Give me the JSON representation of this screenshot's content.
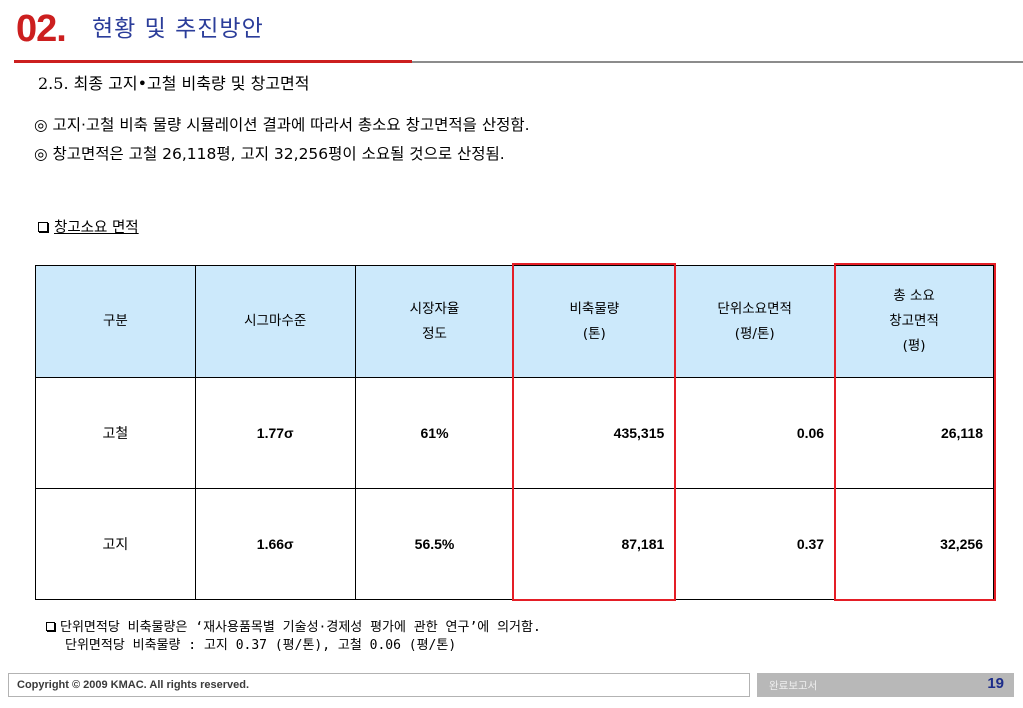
{
  "header": {
    "number": "02.",
    "title": "현황 및 추진방안"
  },
  "subtitle": "2.5. 최종 고지•고철 비축량 및 창고면적",
  "bullets": [
    "◎ 고지·고철 비축 물량 시뮬레이션 결과에 따라서 총소요 창고면적을 산정함.",
    "◎ 창고면적은 고철 26,118평, 고지 32,256평이 소요될 것으로 산정됨."
  ],
  "section_label": "창고소요 면적",
  "table": {
    "headers": [
      [
        "구분"
      ],
      [
        "시그마수준"
      ],
      [
        "시장자율",
        "정도"
      ],
      [
        "비축물량",
        "(톤)"
      ],
      [
        "단위소요면적",
        "(평/톤)"
      ],
      [
        "총 소요",
        "창고면적",
        "(평)"
      ]
    ],
    "rows": [
      [
        "고철",
        "1.77σ",
        "61%",
        "435,315",
        "0.06",
        "26,118"
      ],
      [
        "고지",
        "1.66σ",
        "56.5%",
        "87,181",
        "0.37",
        "32,256"
      ]
    ],
    "highlight_color": "#e41e26",
    "header_bg": "#cce9fb"
  },
  "note": {
    "line1": "단위면적당 비축물량은 ‘재사용품목별 기술성·경제성 평가에 관한 연구’에 의거함.",
    "line2": "단위면적당 비축물량 : 고지 0.37 (평/톤), 고철 0.06 (평/톤)"
  },
  "footer": {
    "copyright": "Copyright © 2009 KMAC. All rights reserved.",
    "label": "완료보고서",
    "page": "19"
  }
}
